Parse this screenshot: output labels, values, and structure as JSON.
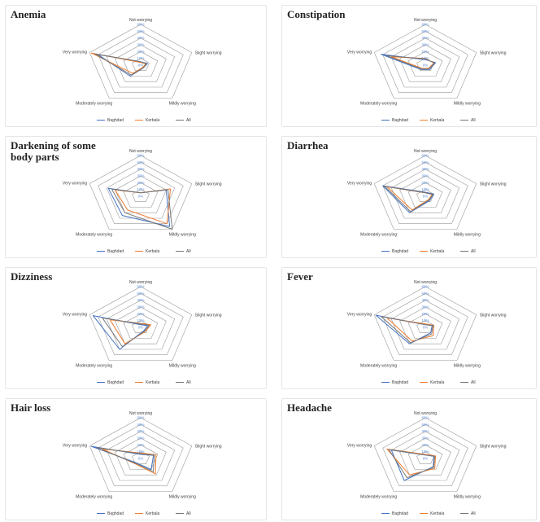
{
  "series_colors": {
    "Baghdad": "#4472c4",
    "Kerbala": "#ed7d31",
    "All": "#767676"
  },
  "tick_color": "#5b8bd6",
  "chart_data": [
    {
      "type": "radar",
      "title": "Anemia",
      "categories": [
        "Not worrying",
        "Slight worrying",
        "Mildly worrying",
        "Moderately worrying",
        "Very worrying"
      ],
      "rlim": [
        0,
        60
      ],
      "ticks": [
        "0%",
        "10%",
        "20%",
        "30%",
        "40%",
        "50%",
        "60%"
      ],
      "legend": "bottom",
      "series": [
        {
          "name": "Baghdad",
          "values": [
            5,
            8,
            5,
            20,
            50
          ]
        },
        {
          "name": "Kerbala",
          "values": [
            4,
            6,
            4,
            15,
            58
          ]
        },
        {
          "name": "All",
          "values": [
            5,
            7,
            5,
            18,
            54
          ]
        }
      ]
    },
    {
      "type": "radar",
      "title": "Constipation",
      "categories": [
        "Not worrying",
        "Slight worrying",
        "Mildly worrying",
        "Moderately worrying",
        "Very worrying"
      ],
      "rlim": [
        0,
        60
      ],
      "ticks": [
        "0%",
        "10%",
        "20%",
        "30%",
        "40%",
        "50%",
        "60%"
      ],
      "legend": "bottom",
      "series": [
        {
          "name": "Baghdad",
          "values": [
            8,
            12,
            8,
            8,
            52
          ]
        },
        {
          "name": "Kerbala",
          "values": [
            10,
            10,
            6,
            6,
            40
          ]
        },
        {
          "name": "All",
          "values": [
            9,
            11,
            7,
            7,
            46
          ]
        }
      ]
    },
    {
      "type": "radar",
      "title": "Darkening of some body parts",
      "categories": [
        "Not worrying",
        "Slight worrying",
        "Mildly worrying",
        "Moderately worrying",
        "Very worrying"
      ],
      "rlim": [
        0,
        60
      ],
      "ticks": [
        "0%",
        "10%",
        "20%",
        "30%",
        "40%",
        "50%",
        "60%"
      ],
      "legend": "bottom",
      "series": [
        {
          "name": "Baghdad",
          "values": [
            5,
            30,
            55,
            35,
            38
          ]
        },
        {
          "name": "Kerbala",
          "values": [
            5,
            35,
            50,
            25,
            30
          ]
        },
        {
          "name": "All",
          "values": [
            5,
            32,
            60,
            30,
            34
          ]
        }
      ]
    },
    {
      "type": "radar",
      "title": "Diarrhea",
      "categories": [
        "Not worrying",
        "Slight worrying",
        "Mildly worrying",
        "Moderately worrying",
        "Very worrying"
      ],
      "rlim": [
        0,
        60
      ],
      "ticks": [
        "0%",
        "10%",
        "20%",
        "30%",
        "40%",
        "50%",
        "60%"
      ],
      "legend": "bottom",
      "series": [
        {
          "name": "Baghdad",
          "values": [
            6,
            10,
            8,
            30,
            50
          ]
        },
        {
          "name": "Kerbala",
          "values": [
            5,
            8,
            6,
            25,
            45
          ]
        },
        {
          "name": "All",
          "values": [
            5,
            9,
            7,
            28,
            48
          ]
        }
      ]
    },
    {
      "type": "radar",
      "title": "Dizziness",
      "categories": [
        "Not worrying",
        "Slight worrying",
        "Mildly worrying",
        "Moderately worrying",
        "Very worrying"
      ],
      "rlim": [
        0,
        60
      ],
      "ticks": [
        "0%",
        "10%",
        "20%",
        "30%",
        "40%",
        "50%",
        "60%"
      ],
      "legend": "bottom",
      "series": [
        {
          "name": "Baghdad",
          "values": [
            4,
            8,
            6,
            40,
            56
          ]
        },
        {
          "name": "Kerbala",
          "values": [
            6,
            12,
            8,
            30,
            36
          ]
        },
        {
          "name": "All",
          "values": [
            5,
            10,
            7,
            35,
            45
          ]
        }
      ]
    },
    {
      "type": "radar",
      "title": "Fever",
      "categories": [
        "Not worrying",
        "Slight worrying",
        "Mildly worrying",
        "Moderately worrying",
        "Very worrying"
      ],
      "rlim": [
        0,
        60
      ],
      "ticks": [
        "0%",
        "10%",
        "20%",
        "30%",
        "40%",
        "50%",
        "60%"
      ],
      "legend": "bottom",
      "series": [
        {
          "name": "Baghdad",
          "values": [
            4,
            8,
            10,
            30,
            58
          ]
        },
        {
          "name": "Kerbala",
          "values": [
            5,
            10,
            15,
            25,
            45
          ]
        },
        {
          "name": "All",
          "values": [
            4,
            9,
            12,
            28,
            52
          ]
        }
      ]
    },
    {
      "type": "radar",
      "title": "Hair loss",
      "categories": [
        "Not worrying",
        "Slight worrying",
        "Mildly worrying",
        "Moderately worrying",
        "Very worrying"
      ],
      "rlim": [
        0,
        60
      ],
      "ticks": [
        "0%",
        "10%",
        "20%",
        "30%",
        "40%",
        "50%",
        "60%"
      ],
      "legend": "bottom",
      "series": [
        {
          "name": "Baghdad",
          "values": [
            6,
            15,
            20,
            8,
            58
          ]
        },
        {
          "name": "Kerbala",
          "values": [
            8,
            18,
            28,
            10,
            45
          ]
        },
        {
          "name": "All",
          "values": [
            7,
            16,
            24,
            9,
            52
          ]
        }
      ]
    },
    {
      "type": "radar",
      "title": "Headache",
      "categories": [
        "Not worrying",
        "Slight worrying",
        "Mildly worrying",
        "Moderately worrying",
        "Very worrying"
      ],
      "rlim": [
        0,
        60
      ],
      "ticks": [
        "0%",
        "10%",
        "20%",
        "30%",
        "40%",
        "50%",
        "60%"
      ],
      "legend": "bottom",
      "series": [
        {
          "name": "Baghdad",
          "values": [
            5,
            10,
            15,
            40,
            40
          ]
        },
        {
          "name": "Kerbala",
          "values": [
            6,
            12,
            18,
            30,
            45
          ]
        },
        {
          "name": "All",
          "values": [
            5,
            11,
            16,
            35,
            43
          ]
        }
      ]
    }
  ]
}
